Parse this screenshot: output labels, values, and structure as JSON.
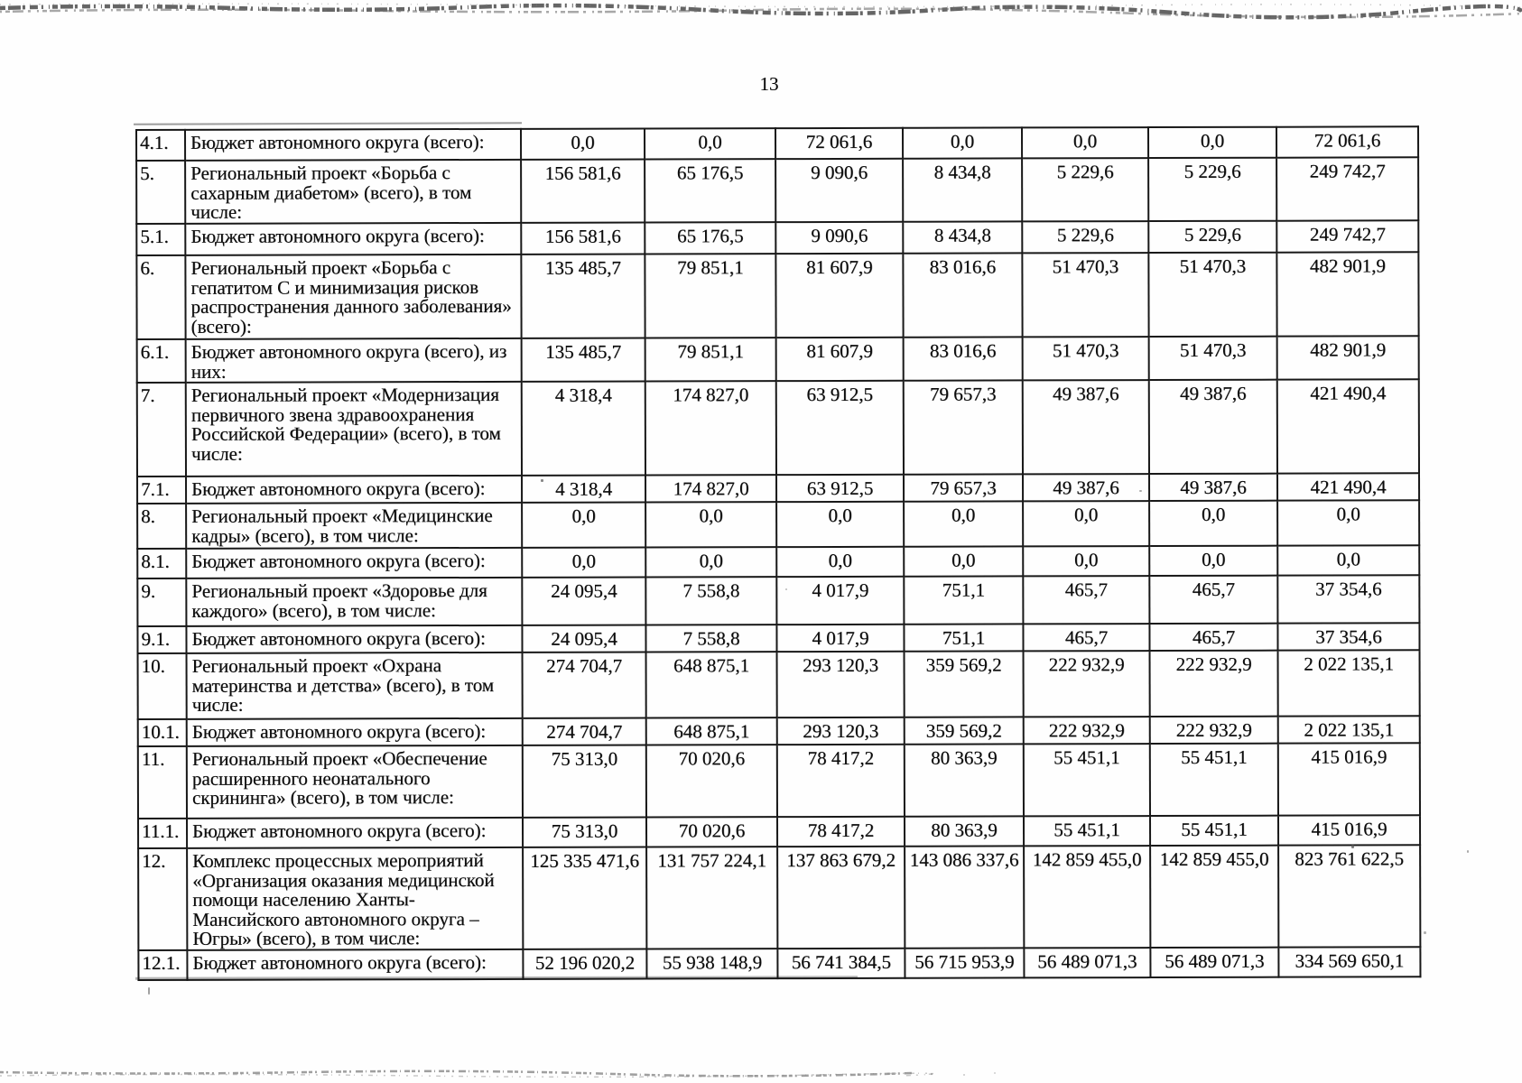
{
  "page": {
    "number": "13"
  },
  "table": {
    "rows": [
      {
        "num": "4.1.",
        "label": "Бюджет автономного округа (всего):",
        "values": [
          "0,0",
          "0,0",
          "72 061,6",
          "0,0",
          "0,0",
          "0,0",
          "72 061,6"
        ]
      },
      {
        "num": "5.",
        "label": "Региональный проект «Борьба с сахарным диабетом» (всего), в том числе:",
        "values": [
          "156 581,6",
          "65 176,5",
          "9 090,6",
          "8 434,8",
          "5 229,6",
          "5 229,6",
          "249 742,7"
        ]
      },
      {
        "num": "5.1.",
        "label": "Бюджет автономного округа (всего):",
        "values": [
          "156 581,6",
          "65 176,5",
          "9 090,6",
          "8 434,8",
          "5 229,6",
          "5 229,6",
          "249 742,7"
        ]
      },
      {
        "num": "6.",
        "label": "Региональный проект «Борьба с гепатитом С и минимизация рисков распространения данного заболевания» (всего):",
        "values": [
          "135 485,7",
          "79 851,1",
          "81 607,9",
          "83 016,6",
          "51 470,3",
          "51 470,3",
          "482 901,9"
        ]
      },
      {
        "num": "6.1.",
        "label": "Бюджет автономного округа (всего), из них:",
        "values": [
          "135 485,7",
          "79 851,1",
          "81 607,9",
          "83 016,6",
          "51 470,3",
          "51 470,3",
          "482 901,9"
        ]
      },
      {
        "num": "7.",
        "label": "Региональный проект «Модернизация первичного звена здравоохранения Российской Федерации» (всего), в том числе:",
        "values": [
          "4 318,4",
          "174 827,0",
          "63 912,5",
          "79 657,3",
          "49 387,6",
          "49 387,6",
          "421 490,4"
        ]
      },
      {
        "num": "7.1.",
        "label": "Бюджет автономного округа (всего):",
        "values": [
          "4 318,4",
          "174 827,0",
          "63 912,5",
          "79 657,3",
          "49 387,6",
          "49 387,6",
          "421 490,4"
        ]
      },
      {
        "num": "8.",
        "label": "Региональный проект «Медицинские кадры» (всего), в том числе:",
        "values": [
          "0,0",
          "0,0",
          "0,0",
          "0,0",
          "0,0",
          "0,0",
          "0,0"
        ]
      },
      {
        "num": "8.1.",
        "label": "Бюджет автономного округа (всего):",
        "values": [
          "0,0",
          "0,0",
          "0,0",
          "0,0",
          "0,0",
          "0,0",
          "0,0"
        ]
      },
      {
        "num": "9.",
        "label": "Региональный проект «Здоровье для каждого» (всего), в том числе:",
        "values": [
          "24 095,4",
          "7 558,8",
          "4 017,9",
          "751,1",
          "465,7",
          "465,7",
          "37 354,6"
        ]
      },
      {
        "num": "9.1.",
        "label": "Бюджет автономного округа (всего):",
        "values": [
          "24 095,4",
          "7 558,8",
          "4 017,9",
          "751,1",
          "465,7",
          "465,7",
          "37 354,6"
        ]
      },
      {
        "num": "10.",
        "label": "Региональный проект «Охрана материнства и детства» (всего), в том числе:",
        "values": [
          "274 704,7",
          "648 875,1",
          "293 120,3",
          "359 569,2",
          "222 932,9",
          "222 932,9",
          "2 022 135,1"
        ]
      },
      {
        "num": "10.1.",
        "label": "Бюджет автономного округа (всего):",
        "values": [
          "274 704,7",
          "648 875,1",
          "293 120,3",
          "359 569,2",
          "222 932,9",
          "222 932,9",
          "2 022 135,1"
        ]
      },
      {
        "num": "11.",
        "label": "Региональный проект «Обеспечение расширенного неонатального скрининга» (всего), в том числе:",
        "values": [
          "75 313,0",
          "70 020,6",
          "78 417,2",
          "80 363,9",
          "55 451,1",
          "55 451,1",
          "415 016,9"
        ]
      },
      {
        "num": "11.1.",
        "label": "Бюджет автономного округа (всего):",
        "values": [
          "75 313,0",
          "70 020,6",
          "78 417,2",
          "80 363,9",
          "55 451,1",
          "55 451,1",
          "415 016,9"
        ]
      },
      {
        "num": "12.",
        "label": "Комплекс процессных мероприятий «Организация оказания медицинской помощи населению Ханты-Мансийского автономного округа – Югры» (всего), в том числе:",
        "values": [
          "125 335 471,6",
          "131 757 224,1",
          "137 863 679,2",
          "143 086 337,6",
          "142 859 455,0",
          "142 859 455,0",
          "823 761 622,5"
        ]
      },
      {
        "num": "12.1.",
        "label": "Бюджет автономного округа (всего):",
        "values": [
          "52 196 020,2",
          "55 938 148,9",
          "56 741 384,5",
          "56 715 953,9",
          "56 489 071,3",
          "56 489 071,3",
          "334 569 650,1"
        ]
      }
    ]
  }
}
